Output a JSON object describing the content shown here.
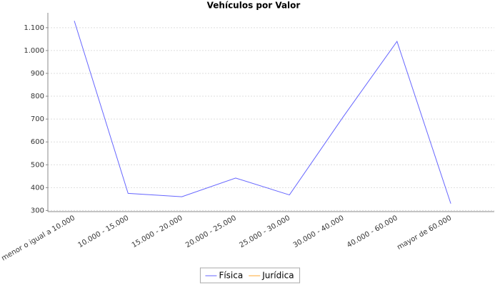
{
  "chart_data": {
    "type": "line",
    "title": "Vehículos por Valor",
    "categories": [
      "menor o igual a 10.000",
      "10.000 - 15.000",
      "15.000 - 20.000",
      "20.000 - 25.000",
      "25.000 - 30.000",
      "30.000 - 40.000",
      "40.000 - 60.000",
      "mayor de 60.000"
    ],
    "series": [
      {
        "name": "Física",
        "color": "#6666ff",
        "values": [
          1130,
          375,
          360,
          442,
          368,
          710,
          1040,
          330
        ]
      },
      {
        "name": "Jurídica",
        "color": "#ffaa33",
        "values": [
          null,
          null,
          null,
          null,
          null,
          null,
          null,
          null
        ]
      }
    ],
    "ylim": [
      295,
      1165
    ],
    "yticks": [
      300,
      400,
      500,
      600,
      700,
      800,
      900,
      {
        "value": 1000,
        "label": "1.000"
      },
      {
        "value": 1100,
        "label": "1.100"
      }
    ],
    "grid": true,
    "legend": "bottom"
  }
}
